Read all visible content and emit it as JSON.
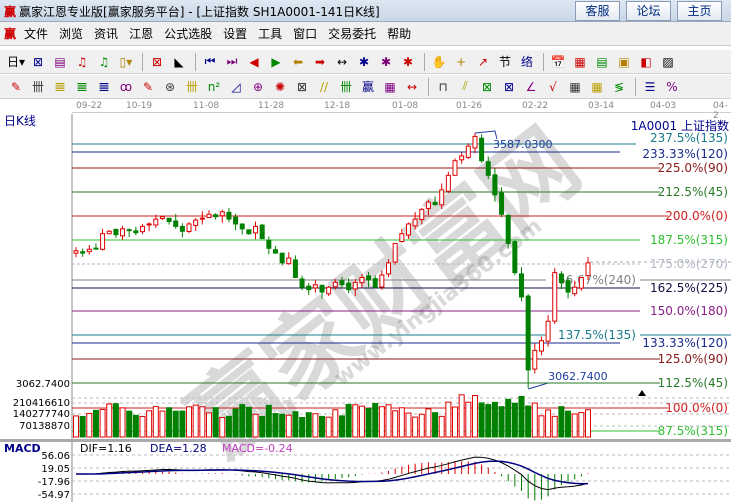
{
  "window": {
    "title": "赢家江恩专业版[赢家服务平台] - [上证指数  SH1A0001-141日K线]",
    "logo": "赢",
    "buttons": [
      "客服",
      "论坛",
      "主页"
    ]
  },
  "menu": {
    "logo": "赢",
    "items": [
      "文件",
      "浏览",
      "资讯",
      "江恩",
      "公式选股",
      "设置",
      "工具",
      "窗口",
      "交易委托",
      "帮助"
    ]
  },
  "toolbar1": [
    "日▾",
    "⊠",
    "▤",
    "♫",
    "♫",
    "▯▾",
    "⊠",
    "◣",
    "⏮",
    "⏭",
    "◀",
    "▶",
    "⬅",
    "➡",
    "↔",
    "✱",
    "✱",
    "✱",
    "✋",
    "+",
    "↗",
    "节",
    "络",
    "📅",
    "▦",
    "▤",
    "▣",
    "◧",
    "▨"
  ],
  "toolbar2": [
    "✎",
    "卌",
    "𝌆",
    "𝌆",
    "𝌆",
    "ꝏ",
    "✎",
    "⊛",
    "卌",
    "n²",
    "◿",
    "⊕",
    "✺",
    "⊠",
    "//",
    "卌",
    "赢",
    "▦",
    "↔",
    "⊓",
    "⫽",
    "⊠",
    "⊠",
    "∠",
    "√",
    "▦",
    "▦",
    "≶",
    "☰",
    "%"
  ],
  "date_axis": [
    "09-22",
    "10-19",
    "11-08",
    "11-28",
    "12-18",
    "01-08",
    "01-26",
    "02-22",
    "03-14",
    "04-03",
    "04-2"
  ],
  "chart": {
    "period_label": "日K线",
    "symbol_label": "1A0001  上证指数",
    "high_label": "3587.0300",
    "low_label": "3062.7400",
    "left_price_label": "3062.7400",
    "fib_levels": [
      {
        "label": "237.5%(135)",
        "color": "#1a7a8c"
      },
      {
        "label": "233.33%(120)",
        "color": "#1a2a8c"
      },
      {
        "label": "225.0%(90)",
        "color": "#8b1a1a"
      },
      {
        "label": "212.5%(45)",
        "color": "#2a7a2a"
      },
      {
        "label": "200.0%(0)",
        "color": "#d02020"
      },
      {
        "label": "187.5%(315)",
        "color": "#30c030"
      },
      {
        "label": "175.0%(270)",
        "color": "#b0b8c8"
      },
      {
        "label": "166.67%(240)",
        "color": "#808080"
      },
      {
        "label": "162.5%(225)",
        "color": "#101040"
      },
      {
        "label": "150.0%(180)",
        "color": "#8a208a"
      },
      {
        "label": "137.5%(135)",
        "color": "#1a7a8c"
      },
      {
        "label": "133.33%(120)",
        "color": "#1a2a8c"
      },
      {
        "label": "125.0%(90)",
        "color": "#8b1a1a"
      },
      {
        "label": "112.5%(45)",
        "color": "#2a7a2a"
      },
      {
        "label": "100.0%(0)",
        "color": "#d02020"
      },
      {
        "label": "87.5%(315)",
        "color": "#30c030"
      }
    ],
    "up_color": "#e00000",
    "down_color": "#008000",
    "closes": [
      3345,
      3340,
      3348,
      3350,
      3380,
      3385,
      3378,
      3390,
      3388,
      3382,
      3395,
      3400,
      3410,
      3415,
      3405,
      3395,
      3385,
      3400,
      3408,
      3412,
      3420,
      3415,
      3425,
      3410,
      3400,
      3390,
      3380,
      3395,
      3370,
      3350,
      3340,
      3320,
      3330,
      3290,
      3270,
      3265,
      3275,
      3260,
      3270,
      3280,
      3275,
      3265,
      3280,
      3290,
      3285,
      3270,
      3295,
      3320,
      3360,
      3380,
      3400,
      3410,
      3430,
      3445,
      3440,
      3470,
      3500,
      3530,
      3540,
      3560,
      3580,
      3530,
      3500,
      3460,
      3420,
      3360,
      3300,
      3250,
      3100,
      3140,
      3160,
      3200,
      3300,
      3280,
      3260,
      3270,
      3290,
      3320
    ]
  },
  "volume": {
    "ticks": [
      "210416610",
      "140277740",
      "70138870"
    ]
  },
  "macd": {
    "label": "MACD",
    "dif": "DIF=1.16",
    "dea": "DEA=1.28",
    "macd": "MACD=-0.24",
    "ticks": [
      "56.06",
      "19.05",
      "-17.96",
      "-54.97"
    ],
    "dif_color": "#000000",
    "dea_color": "#000080",
    "macd_color": "#c040c0"
  },
  "watermark": {
    "text": "赢家财富网",
    "url": "www.yingjia360.com"
  }
}
